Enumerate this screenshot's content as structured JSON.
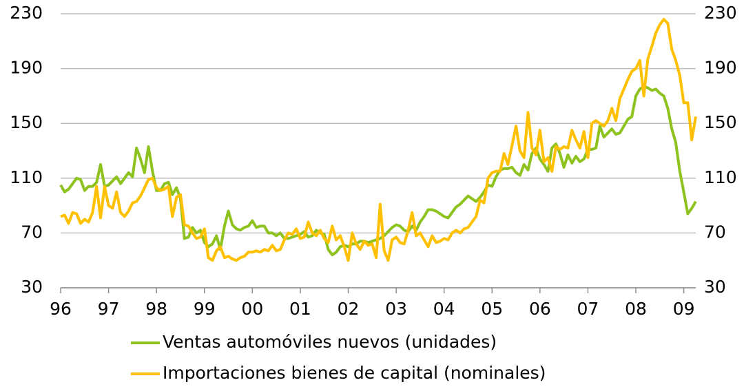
{
  "chart_data": {
    "type": "line",
    "x": [
      1996,
      1996.083,
      1996.167,
      1996.25,
      1996.333,
      1996.417,
      1996.5,
      1996.583,
      1996.667,
      1996.75,
      1996.833,
      1996.917,
      1997,
      1997.083,
      1997.167,
      1997.25,
      1997.333,
      1997.417,
      1997.5,
      1997.583,
      1997.667,
      1997.75,
      1997.833,
      1997.917,
      1998,
      1998.083,
      1998.167,
      1998.25,
      1998.333,
      1998.417,
      1998.5,
      1998.583,
      1998.667,
      1998.75,
      1998.833,
      1998.917,
      1999,
      1999.083,
      1999.167,
      1999.25,
      1999.333,
      1999.417,
      1999.5,
      1999.583,
      1999.667,
      1999.75,
      1999.833,
      1999.917,
      2000,
      2000.083,
      2000.167,
      2000.25,
      2000.333,
      2000.417,
      2000.5,
      2000.583,
      2000.667,
      2000.75,
      2000.833,
      2000.917,
      2001,
      2001.083,
      2001.167,
      2001.25,
      2001.333,
      2001.417,
      2001.5,
      2001.583,
      2001.667,
      2001.75,
      2001.833,
      2001.917,
      2002,
      2002.083,
      2002.167,
      2002.25,
      2002.333,
      2002.417,
      2002.5,
      2002.583,
      2002.667,
      2002.75,
      2002.833,
      2002.917,
      2003,
      2003.083,
      2003.167,
      2003.25,
      2003.333,
      2003.417,
      2003.5,
      2003.583,
      2003.667,
      2003.75,
      2003.833,
      2003.917,
      2004,
      2004.083,
      2004.167,
      2004.25,
      2004.333,
      2004.417,
      2004.5,
      2004.583,
      2004.667,
      2004.75,
      2004.833,
      2004.917,
      2005,
      2005.083,
      2005.167,
      2005.25,
      2005.333,
      2005.417,
      2005.5,
      2005.583,
      2005.667,
      2005.75,
      2005.833,
      2005.917,
      2006,
      2006.083,
      2006.167,
      2006.25,
      2006.333,
      2006.417,
      2006.5,
      2006.583,
      2006.667,
      2006.75,
      2006.833,
      2006.917,
      2007,
      2007.083,
      2007.167,
      2007.25,
      2007.333,
      2007.417,
      2007.5,
      2007.583,
      2007.667,
      2007.75,
      2007.833,
      2007.917,
      2008,
      2008.083,
      2008.167,
      2008.25,
      2008.333,
      2008.417,
      2008.5,
      2008.583,
      2008.667,
      2008.75,
      2008.833,
      2008.917,
      2009,
      2009.083,
      2009.167,
      2009.25
    ],
    "series": [
      {
        "name": "Ventas automóviles nuevos (unidades)",
        "color": "#8dc21f",
        "axis": "y",
        "values": [
          105,
          100,
          102,
          106,
          110,
          109,
          101,
          104,
          104,
          107,
          120,
          104,
          105,
          108,
          111,
          106,
          110,
          114,
          111,
          132,
          124,
          114,
          133,
          115,
          101,
          101,
          106,
          107,
          98,
          103,
          95,
          66,
          67,
          74,
          70,
          72,
          63,
          60,
          62,
          68,
          58,
          75,
          86,
          76,
          73,
          72,
          74,
          75,
          79,
          74,
          75,
          75,
          70,
          70,
          68,
          70,
          66,
          66,
          67,
          68,
          69,
          71,
          67,
          68,
          72,
          70,
          69,
          58,
          54,
          56,
          60,
          61,
          60,
          62,
          62,
          64,
          64,
          63,
          64,
          65,
          66,
          68,
          71,
          74,
          76,
          75,
          72,
          71,
          75,
          72,
          78,
          82,
          87,
          87,
          86,
          84,
          82,
          81,
          85,
          89,
          91,
          94,
          97,
          95,
          93,
          96,
          100,
          105,
          104,
          111,
          116,
          117,
          117,
          118,
          114,
          112,
          120,
          116,
          128,
          132,
          124,
          120,
          115,
          132,
          135,
          128,
          118,
          127,
          121,
          126,
          122,
          124,
          131,
          131,
          132,
          148,
          140,
          143,
          146,
          142,
          143,
          148,
          153,
          155,
          170,
          175,
          177,
          176,
          174,
          175,
          172,
          170,
          161,
          146,
          136,
          115,
          100,
          84,
          88,
          93
        ]
      },
      {
        "name": "Importaciones bienes de capital (nominales)",
        "color": "#ffc000",
        "axis": "y2",
        "values": [
          82,
          83,
          77,
          85,
          84,
          77,
          80,
          78,
          85,
          104,
          81,
          104,
          90,
          88,
          100,
          85,
          82,
          86,
          92,
          93,
          97,
          103,
          109,
          110,
          103,
          101,
          102,
          104,
          82,
          96,
          98,
          76,
          75,
          70,
          66,
          67,
          73,
          52,
          50,
          57,
          60,
          52,
          53,
          51,
          50,
          52,
          53,
          56,
          56,
          57,
          56,
          58,
          57,
          61,
          57,
          58,
          65,
          70,
          69,
          73,
          66,
          67,
          78,
          70,
          68,
          72,
          66,
          63,
          75,
          65,
          68,
          60,
          50,
          70,
          62,
          58,
          64,
          61,
          62,
          52,
          91,
          57,
          50,
          65,
          67,
          63,
          62,
          72,
          85,
          68,
          70,
          65,
          60,
          68,
          63,
          64,
          66,
          65,
          70,
          72,
          70,
          73,
          74,
          78,
          82,
          94,
          92,
          110,
          114,
          115,
          115,
          128,
          120,
          134,
          148,
          130,
          125,
          158,
          132,
          127,
          145,
          122,
          125,
          115,
          133,
          131,
          133,
          132,
          145,
          138,
          132,
          144,
          125,
          150,
          152,
          150,
          148,
          152,
          161,
          152,
          168,
          175,
          182,
          188,
          190,
          196,
          170,
          197,
          206,
          216,
          222,
          226,
          223,
          204,
          196,
          185,
          165,
          165,
          138,
          155
        ]
      }
    ],
    "xlim": [
      1996,
      2009.25
    ],
    "xticks": [
      {
        "value": 1996,
        "label": "96"
      },
      {
        "value": 1997,
        "label": "97"
      },
      {
        "value": 1998,
        "label": "98"
      },
      {
        "value": 1999,
        "label": "99"
      },
      {
        "value": 2000,
        "label": "00"
      },
      {
        "value": 2001,
        "label": "01"
      },
      {
        "value": 2002,
        "label": "02"
      },
      {
        "value": 2003,
        "label": "03"
      },
      {
        "value": 2004,
        "label": "04"
      },
      {
        "value": 2005,
        "label": "05"
      },
      {
        "value": 2006,
        "label": "06"
      },
      {
        "value": 2007,
        "label": "07"
      },
      {
        "value": 2008,
        "label": "08"
      },
      {
        "value": 2009,
        "label": "09"
      }
    ],
    "ylim": [
      30,
      230
    ],
    "yticks": [
      30,
      70,
      110,
      150,
      190,
      230
    ],
    "y2lim": [
      30,
      230
    ],
    "y2ticks": [
      30,
      70,
      110,
      150,
      190,
      230
    ],
    "grid": true,
    "legend": "bottom"
  }
}
